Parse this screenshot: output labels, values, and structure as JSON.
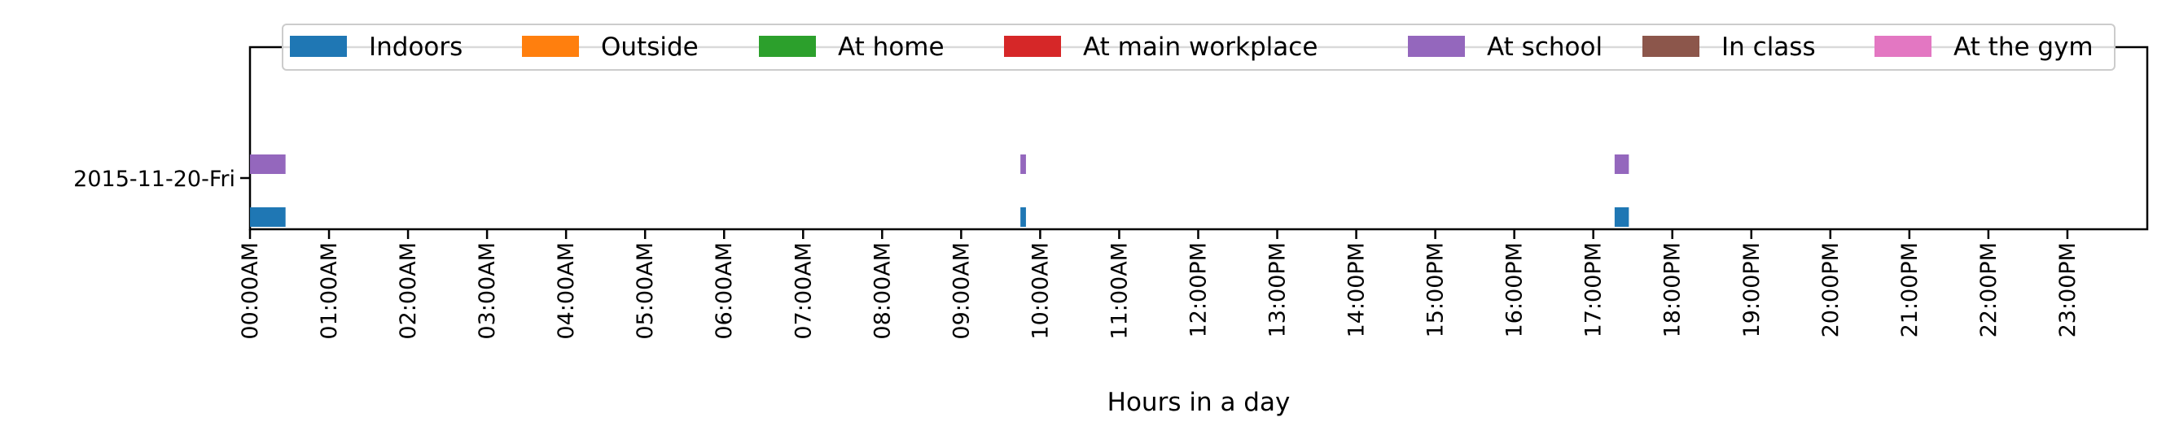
{
  "chart_data": {
    "type": "bar",
    "orientation": "horizontal-timeline",
    "title": "",
    "xlabel": "Hours in a day",
    "ylabel": "",
    "xlim": [
      0,
      24
    ],
    "x_ticks": [
      "00:00AM",
      "01:00AM",
      "02:00AM",
      "03:00AM",
      "04:00AM",
      "05:00AM",
      "06:00AM",
      "07:00AM",
      "08:00AM",
      "09:00AM",
      "10:00AM",
      "11:00AM",
      "12:00PM",
      "13:00PM",
      "14:00PM",
      "15:00PM",
      "16:00PM",
      "17:00PM",
      "18:00PM",
      "19:00PM",
      "20:00PM",
      "21:00PM",
      "22:00PM",
      "23:00PM"
    ],
    "categories": [
      "2015-11-20-Fri"
    ],
    "grid": false,
    "legend_placement": "top",
    "series": [
      {
        "name": "Indoors",
        "color": "#1f77b4",
        "intervals": [
          [
            0.0,
            0.45
          ],
          [
            9.75,
            9.82
          ],
          [
            17.27,
            17.45
          ]
        ]
      },
      {
        "name": "Outside",
        "color": "#ff7f0e",
        "intervals": []
      },
      {
        "name": "At home",
        "color": "#2ca02c",
        "intervals": []
      },
      {
        "name": "At main workplace",
        "color": "#d62728",
        "intervals": []
      },
      {
        "name": "At school",
        "color": "#9467bd",
        "intervals": [
          [
            0.0,
            0.45
          ],
          [
            9.75,
            9.82
          ],
          [
            17.27,
            17.45
          ]
        ]
      },
      {
        "name": "In class",
        "color": "#8c564b",
        "intervals": []
      },
      {
        "name": "At the gym",
        "color": "#e377c2",
        "intervals": []
      }
    ]
  }
}
